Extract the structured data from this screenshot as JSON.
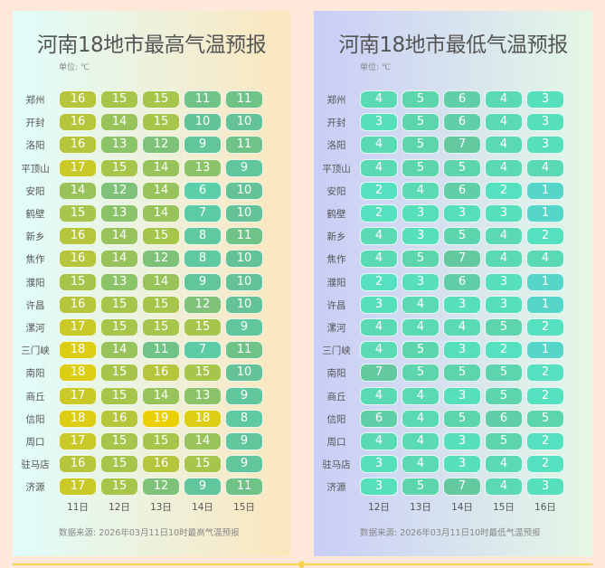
{
  "chart_data": [
    {
      "type": "heatmap",
      "title": "河南18地市最高气温预报",
      "unit_label": "单位: ℃",
      "rows": [
        "郑州",
        "开封",
        "洛阳",
        "平顶山",
        "安阳",
        "鹤壁",
        "新乡",
        "焦作",
        "濮阳",
        "许昌",
        "漯河",
        "三门峡",
        "南阳",
        "商丘",
        "信阳",
        "周口",
        "驻马店",
        "济源"
      ],
      "columns": [
        "11日",
        "12日",
        "13日",
        "14日",
        "15日"
      ],
      "values": [
        [
          16,
          15,
          15,
          11,
          11
        ],
        [
          16,
          14,
          15,
          10,
          10
        ],
        [
          16,
          13,
          12,
          9,
          11
        ],
        [
          17,
          15,
          14,
          13,
          9
        ],
        [
          14,
          12,
          14,
          6,
          10
        ],
        [
          15,
          13,
          14,
          7,
          10
        ],
        [
          16,
          14,
          15,
          8,
          11
        ],
        [
          16,
          14,
          12,
          8,
          10
        ],
        [
          15,
          13,
          14,
          9,
          10
        ],
        [
          16,
          15,
          15,
          12,
          10
        ],
        [
          17,
          15,
          15,
          15,
          9
        ],
        [
          18,
          14,
          11,
          7,
          11
        ],
        [
          18,
          15,
          16,
          15,
          10
        ],
        [
          17,
          15,
          14,
          13,
          9
        ],
        [
          18,
          16,
          19,
          18,
          8
        ],
        [
          17,
          15,
          15,
          14,
          9
        ],
        [
          16,
          15,
          16,
          15,
          9
        ],
        [
          17,
          15,
          12,
          9,
          11
        ]
      ],
      "color_scale": [
        [
          6,
          "#5acfa9"
        ],
        [
          10,
          "#63c396"
        ],
        [
          12,
          "#7dc278"
        ],
        [
          14,
          "#98c35a"
        ],
        [
          16,
          "#b6c63c"
        ],
        [
          18,
          "#dcce12"
        ],
        [
          19,
          "#ead000"
        ]
      ],
      "source": "数据来源: 2026年03月11日10时最高气温预报"
    },
    {
      "type": "heatmap",
      "title": "河南18地市最低气温预报",
      "unit_label": "单位: ℃",
      "rows": [
        "郑州",
        "开封",
        "洛阳",
        "平顶山",
        "安阳",
        "鹤壁",
        "新乡",
        "焦作",
        "濮阳",
        "许昌",
        "漯河",
        "三门峡",
        "南阳",
        "商丘",
        "信阳",
        "周口",
        "驻马店",
        "济源"
      ],
      "columns": [
        "12日",
        "13日",
        "14日",
        "15日",
        "16日"
      ],
      "values": [
        [
          4,
          5,
          6,
          4,
          3
        ],
        [
          3,
          5,
          6,
          4,
          3
        ],
        [
          4,
          5,
          7,
          4,
          3
        ],
        [
          4,
          5,
          5,
          4,
          4
        ],
        [
          2,
          4,
          6,
          2,
          1
        ],
        [
          2,
          3,
          3,
          3,
          1
        ],
        [
          4,
          3,
          5,
          4,
          2
        ],
        [
          4,
          5,
          7,
          4,
          4
        ],
        [
          2,
          3,
          6,
          3,
          1
        ],
        [
          3,
          4,
          3,
          3,
          1
        ],
        [
          4,
          4,
          4,
          5,
          2
        ],
        [
          4,
          5,
          3,
          2,
          1
        ],
        [
          7,
          5,
          5,
          5,
          2
        ],
        [
          4,
          4,
          3,
          5,
          2
        ],
        [
          6,
          4,
          5,
          6,
          5
        ],
        [
          4,
          4,
          3,
          5,
          2
        ],
        [
          3,
          4,
          3,
          4,
          2
        ],
        [
          3,
          5,
          7,
          4,
          3
        ]
      ],
      "color_scale": [
        [
          1,
          "#55d6c8"
        ],
        [
          2,
          "#55e0c0"
        ],
        [
          3,
          "#56dfbb"
        ],
        [
          4,
          "#59dab5"
        ],
        [
          5,
          "#5cd4ae"
        ],
        [
          6,
          "#60cea6"
        ],
        [
          7,
          "#64c99f"
        ]
      ],
      "source": "数据来源: 2026年03月11日10时最低气温预报"
    }
  ]
}
